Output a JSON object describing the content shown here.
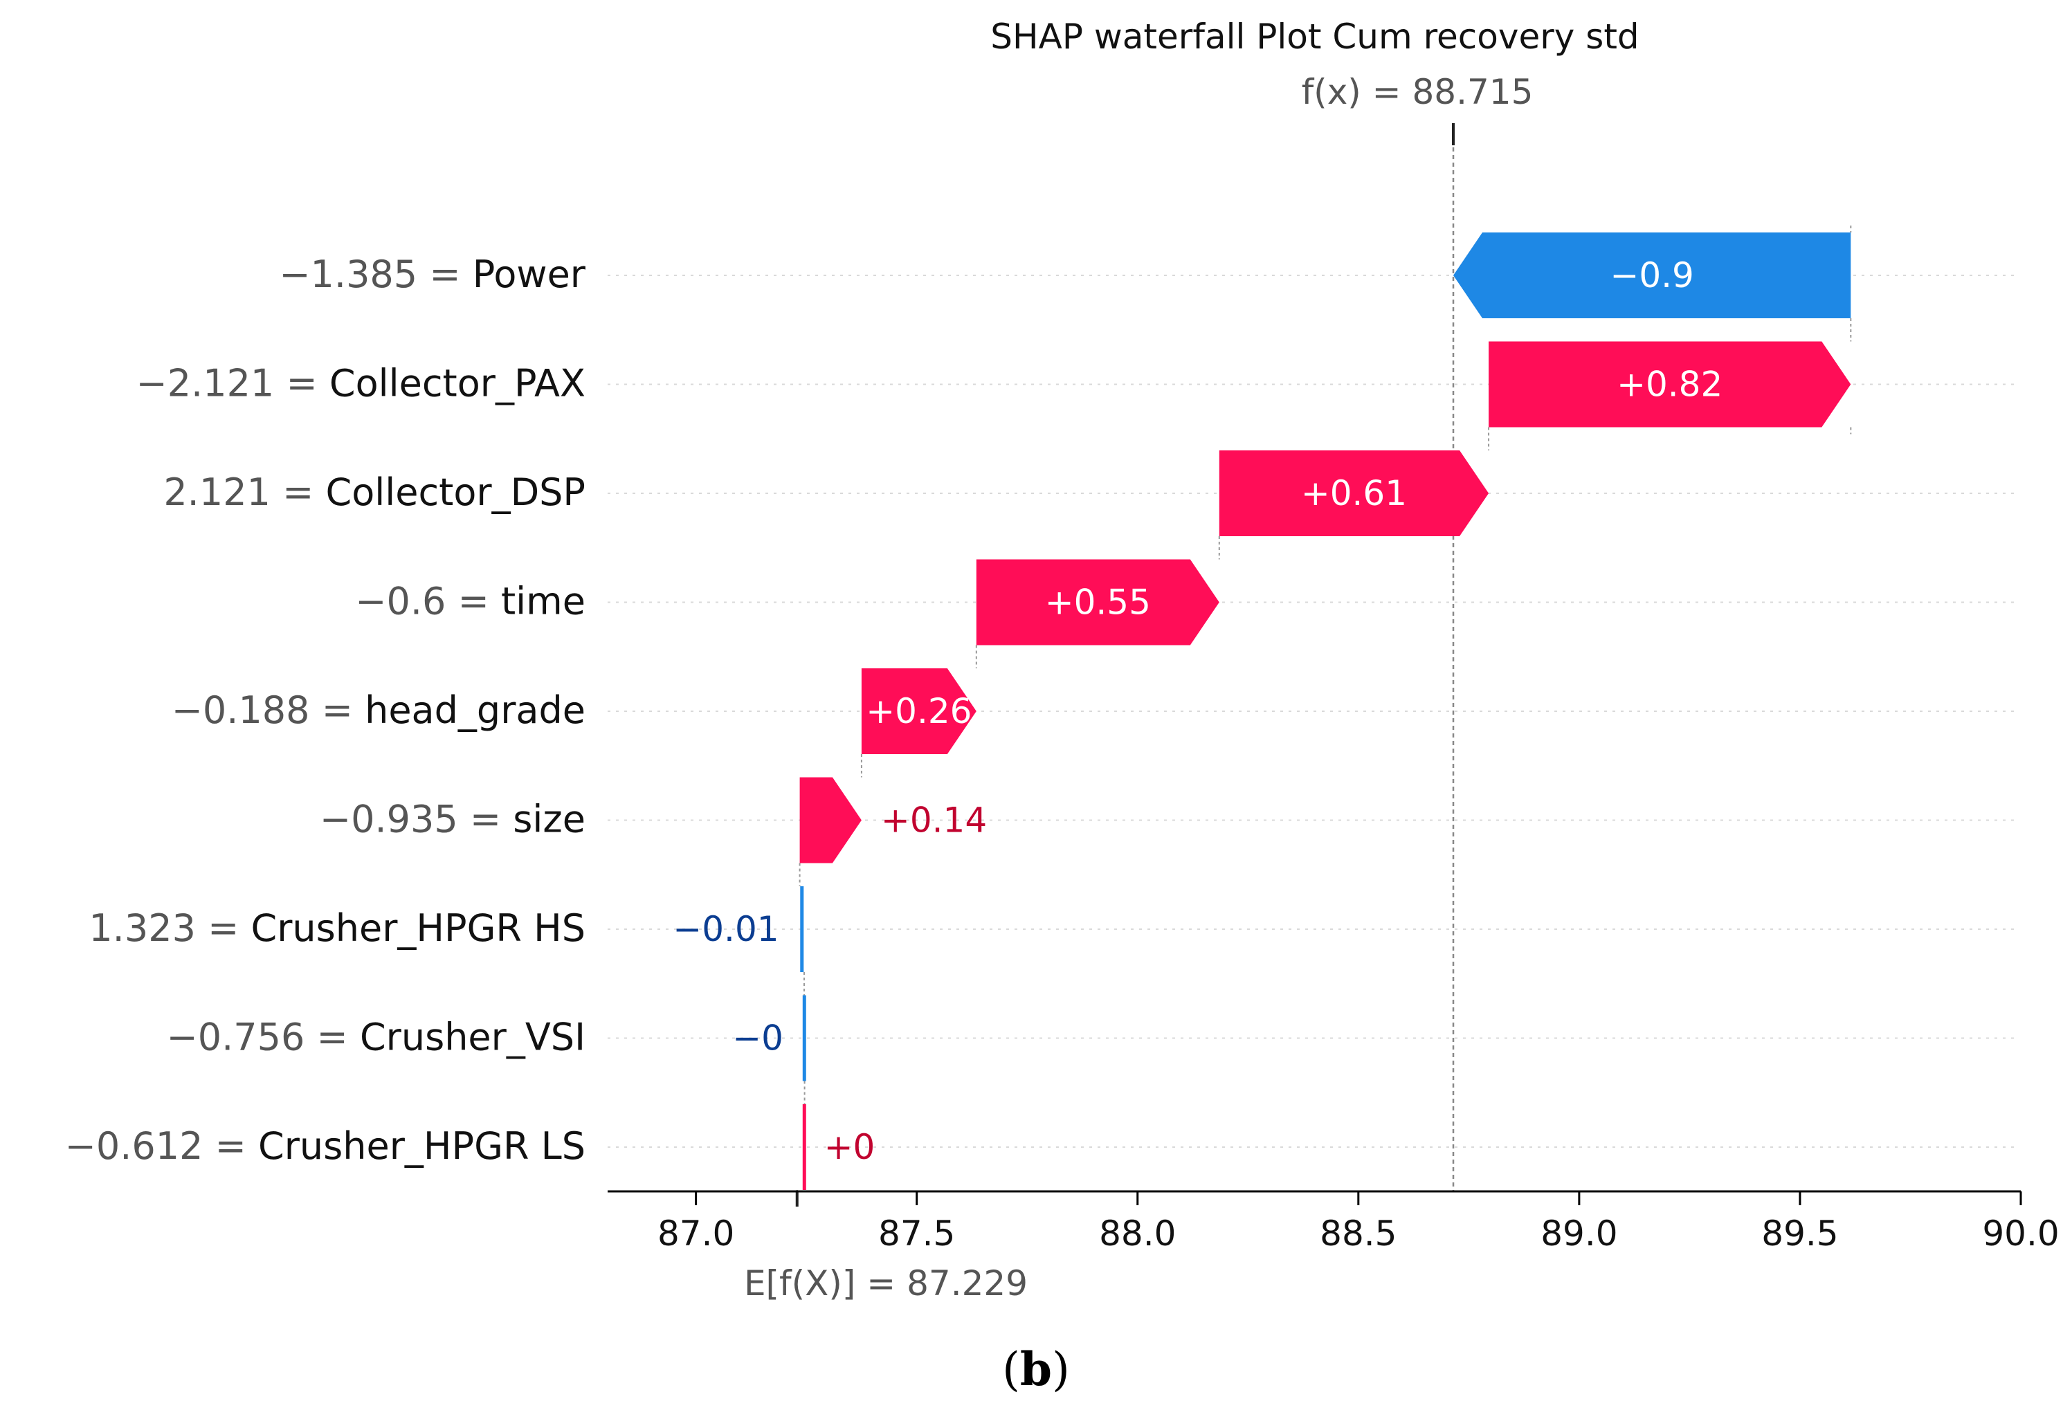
{
  "chart_data": {
    "type": "waterfall",
    "title": "SHAP waterfall Plot Cum recovery std",
    "fx_label": "f(x) = 88.715",
    "fx_value": 88.715,
    "base_label": "E[f(X)] = 87.229",
    "base_value": 87.229,
    "xlim": [
      86.8,
      90.0
    ],
    "xticks": [
      87.0,
      87.5,
      88.0,
      88.5,
      89.0,
      89.5,
      90.0
    ],
    "xtick_labels": [
      "87.0",
      "87.5",
      "88.0",
      "88.5",
      "89.0",
      "89.5",
      "90.0"
    ],
    "rows": [
      {
        "feature_value": "−1.385",
        "feature": "Power",
        "label": "−1.385 = Power",
        "shap": -0.9,
        "shap_label": "−0.9"
      },
      {
        "feature_value": "−2.121",
        "feature": "Collector_PAX",
        "label": "−2.121 = Collector_PAX",
        "shap": 0.82,
        "shap_label": "+0.82"
      },
      {
        "feature_value": "2.121",
        "feature": "Collector_DSP",
        "label": "2.121 = Collector_DSP",
        "shap": 0.61,
        "shap_label": "+0.61"
      },
      {
        "feature_value": "−0.6",
        "feature": "time",
        "label": "−0.6 = time",
        "shap": 0.55,
        "shap_label": "+0.55"
      },
      {
        "feature_value": "−0.188",
        "feature": "head_grade",
        "label": "−0.188 = head_grade",
        "shap": 0.26,
        "shap_label": "+0.26"
      },
      {
        "feature_value": "−0.935",
        "feature": "size",
        "label": "−0.935 = size",
        "shap": 0.14,
        "shap_label": "+0.14"
      },
      {
        "feature_value": "1.323",
        "feature": "Crusher_HPGR HS",
        "label": "1.323 = Crusher_HPGR HS",
        "shap": -0.01,
        "shap_label": "−0.01"
      },
      {
        "feature_value": "−0.756",
        "feature": "Crusher_VSI",
        "label": "−0.756 = Crusher_VSI",
        "shap": -0.001,
        "shap_label": "−0"
      },
      {
        "feature_value": "−0.612",
        "feature": "Crusher_HPGR LS",
        "label": "−0.612 = Crusher_HPGR LS",
        "shap": 0.001,
        "shap_label": "+0"
      }
    ],
    "colors": {
      "positive": "#ff0d57",
      "negative": "#1e88e5",
      "positive_text": "#c1032f",
      "negative_text": "#0b3d91",
      "grid": "#d9d9d9",
      "axis": "#000000",
      "value_text": "#555555"
    }
  },
  "figure": {
    "panel_label": "(b)",
    "panel_letter": "b"
  }
}
